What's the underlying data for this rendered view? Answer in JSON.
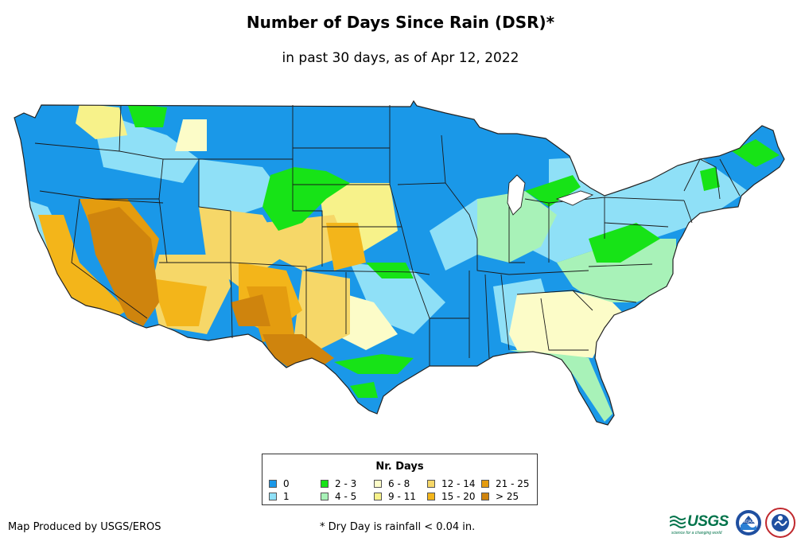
{
  "title": "Number of Days Since Rain (DSR)*",
  "subtitle": "in past 30 days, as of Apr 12, 2022",
  "legend": {
    "title": "Nr. Days",
    "items": [
      {
        "label": "0",
        "color": "#1a98e8"
      },
      {
        "label": "1",
        "color": "#8fe0f7"
      },
      {
        "label": "2 - 3",
        "color": "#17e317"
      },
      {
        "label": "4 - 5",
        "color": "#a8f2b8"
      },
      {
        "label": "6 - 8",
        "color": "#fcfcc8"
      },
      {
        "label": "9 - 11",
        "color": "#f7f28a"
      },
      {
        "label": "12 - 14",
        "color": "#f6d768"
      },
      {
        "label": "15 - 20",
        "color": "#f3b51a"
      },
      {
        "label": "21 - 25",
        "color": "#e49c0f"
      },
      {
        "label": "> 25",
        "color": "#cf840d"
      }
    ]
  },
  "credit": "Map Produced by USGS/EROS",
  "footnote": "* Dry Day is rainfall < 0.04 in.",
  "logos": {
    "usgs_text": "USGS",
    "usgs_tagline": "science for a changing world",
    "noaa_text": "NOAA",
    "nws_icon": "nws-icon"
  },
  "colors": {
    "state_border": "#1a1a1a",
    "map_outline": "#222222"
  }
}
